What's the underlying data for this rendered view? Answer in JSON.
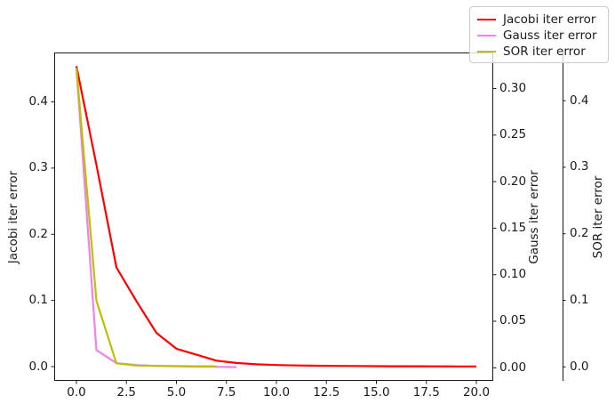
{
  "chart_data": {
    "type": "line",
    "title": "",
    "grid": false,
    "axes": {
      "x": {
        "lim": [
          -1.111,
          20.844
        ],
        "ticks": {
          "values": [
            0,
            2.5,
            5,
            7.5,
            10,
            12.5,
            15,
            17.5,
            20
          ],
          "labels": [
            "0.0",
            "2.5",
            "5.0",
            "7.5",
            "10.0",
            "12.5",
            "15.0",
            "17.5",
            "20.0"
          ]
        }
      },
      "jacobi": {
        "label": "Jacobi iter error",
        "side": "left",
        "lim": [
          -0.0215,
          0.4747
        ],
        "ticks": {
          "values": [
            0,
            0.1,
            0.2,
            0.3,
            0.4
          ],
          "labels": [
            "0.0",
            "0.1",
            "0.2",
            "0.3",
            "0.4"
          ]
        }
      },
      "gauss": {
        "label": "Gauss iter error",
        "side": "right",
        "lim": [
          -0.01406,
          0.33873
        ],
        "ticks": {
          "values": [
            0,
            0.05,
            0.1,
            0.15,
            0.2,
            0.25,
            0.3
          ],
          "labels": [
            "0.00",
            "0.05",
            "0.10",
            "0.15",
            "0.20",
            "0.25",
            "0.30"
          ]
        }
      },
      "sor": {
        "label": "SOR iter error",
        "side": "right-offset",
        "lim": [
          -0.02099,
          0.47233
        ],
        "ticks": {
          "values": [
            0,
            0.1,
            0.2,
            0.3,
            0.4
          ],
          "labels": [
            "0.0",
            "0.1",
            "0.2",
            "0.3",
            "0.4"
          ]
        }
      }
    },
    "series": [
      {
        "name": "Jacobi iter error",
        "axis": "jacobi",
        "color": "#ff0000",
        "x": [
          0,
          1,
          2,
          3,
          4,
          5,
          6,
          7,
          8,
          9,
          10,
          11,
          12,
          13,
          14,
          15,
          16,
          17,
          18,
          19,
          20
        ],
        "y": [
          0.454,
          0.305,
          0.15,
          0.099,
          0.051,
          0.027,
          0.018,
          0.009,
          0.0055,
          0.0035,
          0.0024,
          0.0018,
          0.0014,
          0.0011,
          0.0009,
          0.0007,
          0.0006,
          0.0005,
          0.0004,
          0.00035,
          0.0003
        ]
      },
      {
        "name": "Gauss iter error",
        "axis": "gauss",
        "color": "#ee82ee",
        "x": [
          0,
          1,
          2,
          3,
          4,
          5,
          6,
          7,
          8
        ],
        "y": [
          0.322,
          0.019,
          0.005,
          0.003,
          0.002,
          0.0015,
          0.0012,
          0.001,
          0.0008
        ]
      },
      {
        "name": "SOR iter error",
        "axis": "sor",
        "color": "#bfbf00",
        "x": [
          0,
          1,
          2,
          3,
          4,
          5,
          6,
          7
        ],
        "y": [
          0.449,
          0.0993,
          0.0053,
          0.002,
          0.0015,
          0.0012,
          0.001,
          0.0008
        ]
      }
    ],
    "legend": {
      "position": "upper right",
      "entries": [
        "Jacobi iter error",
        "Gauss iter error",
        "SOR iter error"
      ]
    }
  }
}
